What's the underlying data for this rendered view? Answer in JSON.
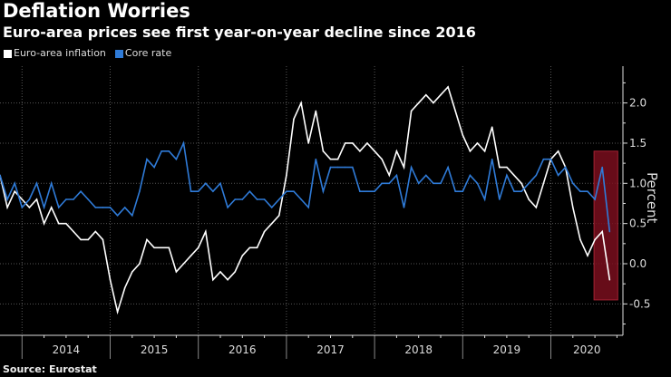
{
  "header": {
    "title": "Deflation Worries",
    "subtitle": "Euro-area prices see first year-on-year decline since 2016"
  },
  "footer": {
    "source": "Source: Eurostat"
  },
  "colors": {
    "background": "#000000",
    "inflation": "#ffffff",
    "core": "#2f7bd8",
    "highlight": "#7a0f1e",
    "highlight_border": "#c0283c",
    "grid": "#555555"
  },
  "chart_data": {
    "type": "line",
    "title": "Deflation Worries",
    "subtitle": "Euro-area prices see first year-on-year decline since 2016",
    "xlabel": "",
    "ylabel": "Percent",
    "ylim": [
      -0.9,
      2.45
    ],
    "yticks": [
      -0.5,
      0.0,
      0.5,
      1.0,
      1.5,
      2.0
    ],
    "ytick_labels": [
      "-0.5",
      "0.0",
      "0.5",
      "1.0",
      "1.5",
      "2.0"
    ],
    "xtick_labels": [
      "2014",
      "2015",
      "2016",
      "2017",
      "2018",
      "2019",
      "2020"
    ],
    "x_start": "2013-09",
    "x_end": "2020-08",
    "grid": true,
    "legend_position": "top-left",
    "highlight": {
      "from": "2020-06",
      "to": "2020-08",
      "ymin": -0.45,
      "ymax": 1.4
    },
    "series": [
      {
        "name": "Euro-area inflation",
        "values": [
          1.1,
          0.7,
          0.9,
          0.8,
          0.7,
          0.8,
          0.5,
          0.7,
          0.5,
          0.5,
          0.4,
          0.3,
          0.3,
          0.4,
          0.3,
          -0.2,
          -0.6,
          -0.3,
          -0.1,
          0.0,
          0.3,
          0.2,
          0.2,
          0.2,
          -0.1,
          0.0,
          0.1,
          0.2,
          0.4,
          -0.2,
          -0.1,
          -0.2,
          -0.1,
          0.1,
          0.2,
          0.2,
          0.4,
          0.5,
          0.6,
          1.1,
          1.8,
          2.0,
          1.5,
          1.9,
          1.4,
          1.3,
          1.3,
          1.5,
          1.5,
          1.4,
          1.5,
          1.4,
          1.3,
          1.1,
          1.4,
          1.2,
          1.9,
          2.0,
          2.1,
          2.0,
          2.1,
          2.2,
          1.9,
          1.6,
          1.4,
          1.5,
          1.4,
          1.7,
          1.2,
          1.2,
          1.1,
          1.0,
          0.8,
          0.7,
          1.0,
          1.3,
          1.4,
          1.2,
          0.7,
          0.3,
          0.1,
          0.3,
          0.4,
          -0.2
        ]
      },
      {
        "name": "Core rate",
        "values": [
          1.1,
          0.8,
          1.0,
          0.7,
          0.8,
          1.0,
          0.7,
          1.0,
          0.7,
          0.8,
          0.8,
          0.9,
          0.8,
          0.7,
          0.7,
          0.7,
          0.6,
          0.7,
          0.6,
          0.9,
          1.3,
          1.2,
          1.4,
          1.4,
          1.3,
          1.5,
          0.9,
          0.9,
          1.0,
          0.9,
          1.0,
          0.7,
          0.8,
          0.8,
          0.9,
          0.8,
          0.8,
          0.7,
          0.8,
          0.9,
          0.9,
          0.8,
          0.7,
          1.3,
          0.9,
          1.2,
          1.2,
          1.2,
          1.2,
          0.9,
          0.9,
          0.9,
          1.0,
          1.0,
          1.1,
          0.7,
          1.2,
          1.0,
          1.1,
          1.0,
          1.0,
          1.2,
          0.9,
          0.9,
          1.1,
          1.0,
          0.8,
          1.3,
          0.8,
          1.1,
          0.9,
          0.9,
          1.0,
          1.1,
          1.3,
          1.3,
          1.1,
          1.2,
          1.0,
          0.9,
          0.9,
          0.8,
          1.2,
          0.4
        ]
      }
    ]
  }
}
